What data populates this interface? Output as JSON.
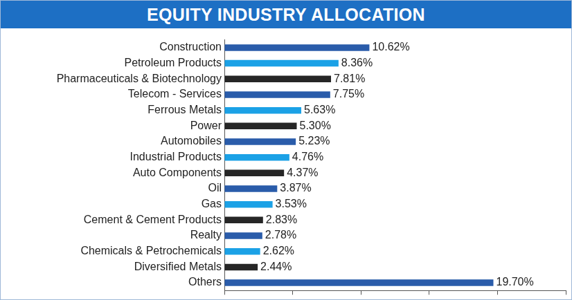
{
  "chart_data": {
    "type": "bar",
    "orientation": "horizontal",
    "title": "EQUITY INDUSTRY ALLOCATION",
    "categories": [
      "Construction",
      "Petroleum Products",
      "Pharmaceuticals & Biotechnology",
      "Telecom - Services",
      "Ferrous Metals",
      "Power",
      "Automobiles",
      "Industrial Products",
      "Auto Components",
      "Oil",
      "Gas",
      "Cement & Cement Products",
      "Realty",
      "Chemicals & Petrochemicals",
      "Diversified Metals",
      "Others"
    ],
    "values": [
      10.62,
      8.36,
      7.81,
      7.75,
      5.63,
      5.3,
      5.23,
      4.76,
      4.37,
      3.87,
      3.53,
      2.83,
      2.78,
      2.62,
      2.44,
      19.7
    ],
    "value_labels": [
      "10.62%",
      "8.36%",
      "7.81%",
      "7.75%",
      "5.63%",
      "5.30%",
      "5.23%",
      "4.76%",
      "4.37%",
      "3.87%",
      "3.53%",
      "2.83%",
      "2.78%",
      "2.62%",
      "2.44%",
      "19.70%"
    ],
    "colors": [
      "#2a5caa",
      "#1ba1e6",
      "#262626",
      "#2a5caa",
      "#1ba1e6",
      "#262626",
      "#2a5caa",
      "#1ba1e6",
      "#262626",
      "#2a5caa",
      "#1ba1e6",
      "#262626",
      "#2a5caa",
      "#1ba1e6",
      "#262626",
      "#2a5caa"
    ],
    "xlim": [
      0,
      25
    ],
    "xticks": [
      0,
      5,
      10,
      15,
      20,
      25
    ],
    "grid": false,
    "data_labels": true,
    "tick_labels": "y"
  }
}
